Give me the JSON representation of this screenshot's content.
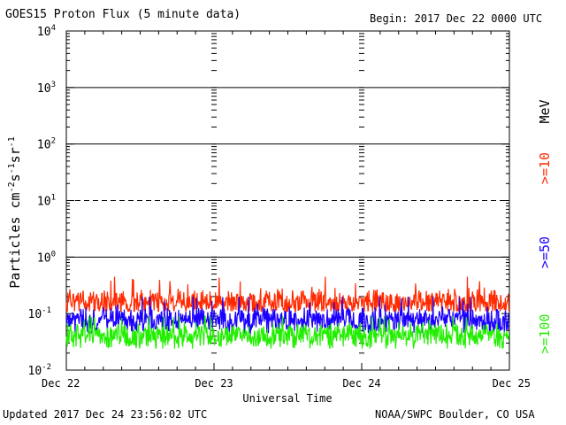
{
  "header": {
    "title": "GOES15 Proton Flux (5 minute data)",
    "begin": "Begin: 2017 Dec 22 0000 UTC"
  },
  "footer": {
    "updated": "Updated 2017 Dec 24 23:56:02 UTC",
    "credit": "NOAA/SWPC Boulder, CO USA"
  },
  "chart_data": {
    "type": "line",
    "title": "GOES15 Proton Flux (5 minute data)",
    "xlabel": "Universal Time",
    "ylabel": "Particles cm⁻²s⁻¹sr⁻¹",
    "yscale": "log",
    "ylim": [
      0.01,
      10000
    ],
    "y_ticks": [
      {
        "value": 10000,
        "base": "10",
        "exp": "4"
      },
      {
        "value": 1000,
        "base": "10",
        "exp": "3"
      },
      {
        "value": 100,
        "base": "10",
        "exp": "2"
      },
      {
        "value": 10,
        "base": "10",
        "exp": "1"
      },
      {
        "value": 1,
        "base": "10",
        "exp": "0"
      },
      {
        "value": 0.1,
        "base": "10",
        "exp": "-1"
      },
      {
        "value": 0.01,
        "base": "10",
        "exp": "-2"
      }
    ],
    "x_ticks": [
      "Dec 22",
      "Dec 23",
      "Dec 24",
      "Dec 25"
    ],
    "xlim": [
      "2017-12-22",
      "2017-12-25"
    ],
    "energy_unit": "MeV",
    "grid": "solid lines at 1000, 100, 1; dashed line at 10",
    "series": [
      {
        "name": ">=10",
        "color": "#ff2a00",
        "typical": 0.16,
        "min": 0.11,
        "max": 0.45
      },
      {
        "name": ">=50",
        "color": "#1a00ff",
        "typical": 0.075,
        "min": 0.045,
        "max": 0.2
      },
      {
        "name": ">=100",
        "color": "#22ee00",
        "typical": 0.04,
        "min": 0.024,
        "max": 0.09
      }
    ]
  }
}
